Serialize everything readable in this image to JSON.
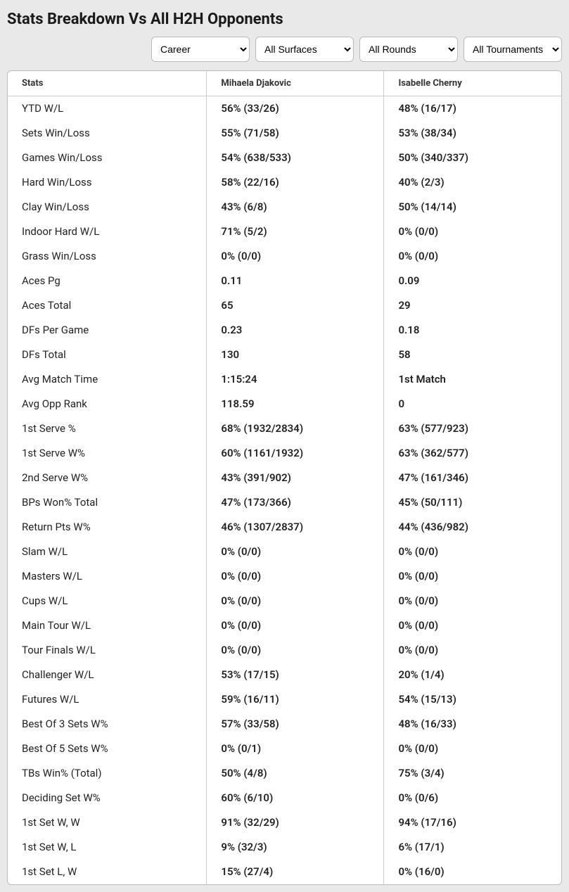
{
  "title": "Stats Breakdown Vs All H2H Opponents",
  "filters": {
    "period": {
      "selected": "Career"
    },
    "surface": {
      "selected": "All Surfaces"
    },
    "round": {
      "selected": "All Rounds"
    },
    "tournament": {
      "selected": "All Tournaments"
    }
  },
  "table": {
    "headers": {
      "stat": "Stats",
      "p1": "Mihaela Djakovic",
      "p2": "Isabelle Cherny"
    },
    "rows": [
      {
        "stat": "YTD W/L",
        "p1": "56% (33/26)",
        "p2": "48% (16/17)"
      },
      {
        "stat": "Sets Win/Loss",
        "p1": "55% (71/58)",
        "p2": "53% (38/34)"
      },
      {
        "stat": "Games Win/Loss",
        "p1": "54% (638/533)",
        "p2": "50% (340/337)"
      },
      {
        "stat": "Hard Win/Loss",
        "p1": "58% (22/16)",
        "p2": "40% (2/3)"
      },
      {
        "stat": "Clay Win/Loss",
        "p1": "43% (6/8)",
        "p2": "50% (14/14)"
      },
      {
        "stat": "Indoor Hard W/L",
        "p1": "71% (5/2)",
        "p2": "0% (0/0)"
      },
      {
        "stat": "Grass Win/Loss",
        "p1": "0% (0/0)",
        "p2": "0% (0/0)"
      },
      {
        "stat": "Aces Pg",
        "p1": "0.11",
        "p2": "0.09"
      },
      {
        "stat": "Aces Total",
        "p1": "65",
        "p2": "29"
      },
      {
        "stat": "DFs Per Game",
        "p1": "0.23",
        "p2": "0.18"
      },
      {
        "stat": "DFs Total",
        "p1": "130",
        "p2": "58"
      },
      {
        "stat": "Avg Match Time",
        "p1": "1:15:24",
        "p2": "1st Match"
      },
      {
        "stat": "Avg Opp Rank",
        "p1": "118.59",
        "p2": "0"
      },
      {
        "stat": "1st Serve %",
        "p1": "68% (1932/2834)",
        "p2": "63% (577/923)"
      },
      {
        "stat": "1st Serve W%",
        "p1": "60% (1161/1932)",
        "p2": "63% (362/577)"
      },
      {
        "stat": "2nd Serve W%",
        "p1": "43% (391/902)",
        "p2": "47% (161/346)"
      },
      {
        "stat": "BPs Won% Total",
        "p1": "47% (173/366)",
        "p2": "45% (50/111)"
      },
      {
        "stat": "Return Pts W%",
        "p1": "46% (1307/2837)",
        "p2": "44% (436/982)"
      },
      {
        "stat": "Slam W/L",
        "p1": "0% (0/0)",
        "p2": "0% (0/0)"
      },
      {
        "stat": "Masters W/L",
        "p1": "0% (0/0)",
        "p2": "0% (0/0)"
      },
      {
        "stat": "Cups W/L",
        "p1": "0% (0/0)",
        "p2": "0% (0/0)"
      },
      {
        "stat": "Main Tour W/L",
        "p1": "0% (0/0)",
        "p2": "0% (0/0)"
      },
      {
        "stat": "Tour Finals W/L",
        "p1": "0% (0/0)",
        "p2": "0% (0/0)"
      },
      {
        "stat": "Challenger W/L",
        "p1": "53% (17/15)",
        "p2": "20% (1/4)"
      },
      {
        "stat": "Futures W/L",
        "p1": "59% (16/11)",
        "p2": "54% (15/13)"
      },
      {
        "stat": "Best Of 3 Sets W%",
        "p1": "57% (33/58)",
        "p2": "48% (16/33)"
      },
      {
        "stat": "Best Of 5 Sets W%",
        "p1": "0% (0/1)",
        "p2": "0% (0/0)"
      },
      {
        "stat": "TBs Win% (Total)",
        "p1": "50% (4/8)",
        "p2": "75% (3/4)"
      },
      {
        "stat": "Deciding Set W%",
        "p1": "60% (6/10)",
        "p2": "0% (0/6)"
      },
      {
        "stat": "1st Set W, W",
        "p1": "91% (32/29)",
        "p2": "94% (17/16)"
      },
      {
        "stat": "1st Set W, L",
        "p1": "9% (32/3)",
        "p2": "6% (17/1)"
      },
      {
        "stat": "1st Set L, W",
        "p1": "15% (27/4)",
        "p2": "0% (16/0)"
      }
    ]
  },
  "colors": {
    "page_bg": "#e9e9e9",
    "card_bg": "#ffffff",
    "border": "#bbbbbb",
    "cell_border": "#cccccc",
    "text": "#222222"
  }
}
